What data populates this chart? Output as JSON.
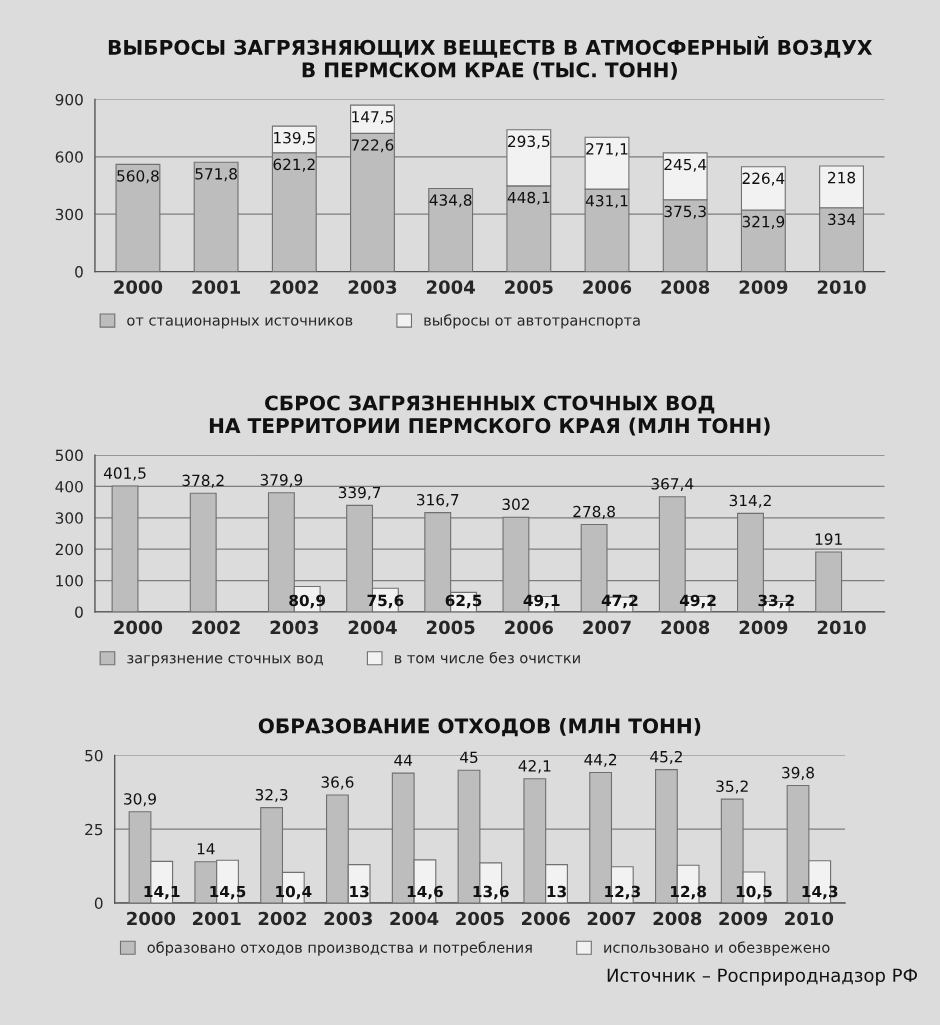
{
  "chart_data": [
    {
      "type": "bar",
      "stacked": true,
      "title": "ВЫБРОСЫ ЗАГРЯЗНЯЮЩИХ ВЕЩЕСТВ В АТМОСФЕРНЫЙ ВОЗДУХ\nВ ПЕРМСКОМ КРАЕ (ТЫС. ТОНН)",
      "categories": [
        "2000",
        "2001",
        "2002",
        "2003",
        "2004",
        "2005",
        "2006",
        "2008",
        "2009",
        "2010"
      ],
      "series": [
        {
          "name": "от стационарных источников",
          "color": "#bdbdbd",
          "values": [
            560.8,
            571.8,
            621.2,
            722.6,
            434.8,
            448.1,
            431.1,
            375.3,
            321.9,
            334
          ],
          "value_labels": [
            "560,8",
            "571,8",
            "621,2",
            "722,6",
            "434,8",
            "448,1",
            "431,1",
            "375,3",
            "321,9",
            "334"
          ]
        },
        {
          "name": "выбросы от автотранспорта",
          "color": "#f2f2f2",
          "values": [
            null,
            null,
            139.5,
            147.5,
            null,
            293.5,
            271.1,
            245.4,
            226.4,
            218
          ],
          "value_labels": [
            null,
            null,
            "139,5",
            "147,5",
            null,
            "293,5",
            "271,1",
            "245,4",
            "226,4",
            "218"
          ]
        }
      ],
      "ylim": [
        0,
        900
      ],
      "yticks": [
        0,
        300,
        600,
        900
      ],
      "grid": "y",
      "legend": "bottom"
    },
    {
      "type": "bar",
      "title": "СБРОС ЗАГРЯЗНЕННЫХ СТОЧНЫХ ВОД\nНА ТЕРРИТОРИИ ПЕРМСКОГО КРАЯ (МЛН ТОНН)",
      "categories": [
        "2000",
        "2002",
        "2003",
        "2004",
        "2005",
        "2006",
        "2007",
        "2008",
        "2009",
        "2010"
      ],
      "series": [
        {
          "name": "загрязнение сточных вод",
          "color": "#bdbdbd",
          "values": [
            401.5,
            378.2,
            379.9,
            339.7,
            316.7,
            302,
            278.8,
            367.4,
            314.2,
            191
          ],
          "value_labels": [
            "401,5",
            "378,2",
            "379,9",
            "339,7",
            "316,7",
            "302",
            "278,8",
            "367,4",
            "314,2",
            "191"
          ]
        },
        {
          "name": "в том числе без очистки",
          "color": "#f2f2f2",
          "values": [
            null,
            null,
            80.9,
            75.6,
            62.5,
            49.1,
            47.2,
            49.2,
            33.2,
            null
          ],
          "value_labels": [
            null,
            null,
            "80,9",
            "75,6",
            "62,5",
            "49,1",
            "47,2",
            "49,2",
            "33,2",
            null
          ]
        }
      ],
      "ylim": [
        0,
        500
      ],
      "yticks": [
        0,
        100,
        200,
        300,
        400,
        500
      ],
      "grid": "y",
      "legend": "bottom"
    },
    {
      "type": "bar",
      "title": "ОБРАЗОВАНИЕ ОТХОДОВ (МЛН ТОНН)",
      "categories": [
        "2000",
        "2001",
        "2002",
        "2003",
        "2004",
        "2005",
        "2006",
        "2007",
        "2008",
        "2009",
        "2010"
      ],
      "series": [
        {
          "name": "образовано отходов производства и потребления",
          "color": "#bdbdbd",
          "values": [
            30.9,
            14,
            32.3,
            36.6,
            44,
            45,
            42.1,
            44.2,
            45.2,
            35.2,
            39.8
          ],
          "value_labels": [
            "30,9",
            "14",
            "32,3",
            "36,6",
            "44",
            "45",
            "42,1",
            "44,2",
            "45,2",
            "35,2",
            "39,8"
          ]
        },
        {
          "name": "использовано и обезврежено",
          "color": "#f2f2f2",
          "values": [
            14.1,
            14.5,
            10.4,
            13,
            14.6,
            13.6,
            13,
            12.3,
            12.8,
            10.5,
            14.3
          ],
          "value_labels": [
            "14,1",
            "14,5",
            "10,4",
            "13",
            "14,6",
            "13,6",
            "13",
            "12,3",
            "12,8",
            "10,5",
            "14,3"
          ]
        }
      ],
      "ylim": [
        0,
        50
      ],
      "yticks": [
        0,
        25,
        50
      ],
      "grid": "y",
      "legend": "bottom",
      "annotations": [
        "Источник – Росприроднадзор РФ"
      ]
    }
  ]
}
